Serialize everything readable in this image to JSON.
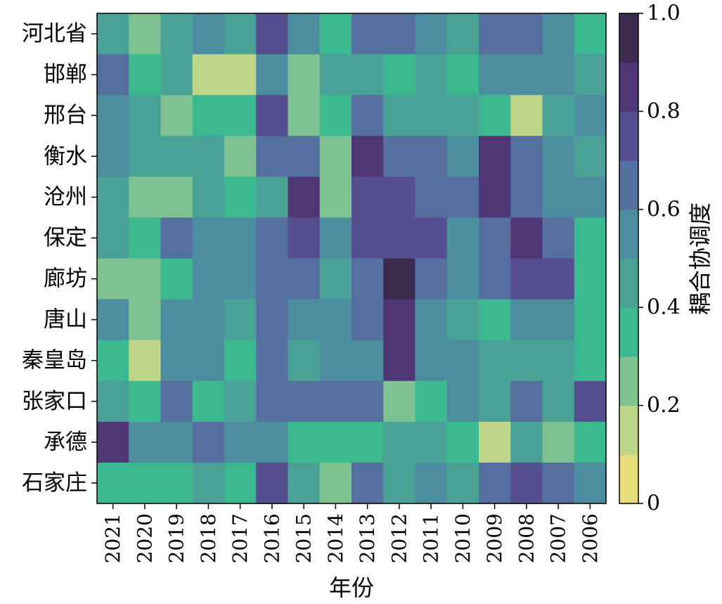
{
  "chart_data": {
    "type": "heatmap",
    "title": "",
    "xlabel": "年份",
    "ylabel": "",
    "x": [
      "2021",
      "2020",
      "2019",
      "2018",
      "2017",
      "2016",
      "2015",
      "2014",
      "2013",
      "2012",
      "2011",
      "2010",
      "2009",
      "2008",
      "2007",
      "2006"
    ],
    "y": [
      "河北省",
      "邯郸",
      "邢台",
      "衡水",
      "沧州",
      "保定",
      "廊坊",
      "唐山",
      "秦皇岛",
      "张家口",
      "承德",
      "石家庄"
    ],
    "values": [
      [
        0.45,
        0.25,
        0.45,
        0.55,
        0.45,
        0.75,
        0.55,
        0.35,
        0.65,
        0.65,
        0.55,
        0.45,
        0.65,
        0.65,
        0.55,
        0.35
      ],
      [
        0.65,
        0.35,
        0.45,
        0.15,
        0.15,
        0.55,
        0.25,
        0.45,
        0.45,
        0.35,
        0.45,
        0.35,
        0.55,
        0.55,
        0.55,
        0.45
      ],
      [
        0.55,
        0.45,
        0.25,
        0.35,
        0.35,
        0.75,
        0.25,
        0.35,
        0.65,
        0.45,
        0.45,
        0.45,
        0.35,
        0.15,
        0.45,
        0.55
      ],
      [
        0.55,
        0.45,
        0.45,
        0.45,
        0.25,
        0.65,
        0.65,
        0.25,
        0.85,
        0.65,
        0.65,
        0.55,
        0.85,
        0.65,
        0.55,
        0.45
      ],
      [
        0.45,
        0.25,
        0.25,
        0.45,
        0.35,
        0.45,
        0.85,
        0.25,
        0.75,
        0.75,
        0.65,
        0.65,
        0.85,
        0.65,
        0.55,
        0.55
      ],
      [
        0.45,
        0.35,
        0.65,
        0.55,
        0.55,
        0.65,
        0.75,
        0.55,
        0.75,
        0.75,
        0.75,
        0.55,
        0.65,
        0.85,
        0.65,
        0.35
      ],
      [
        0.25,
        0.25,
        0.35,
        0.55,
        0.55,
        0.65,
        0.65,
        0.45,
        0.65,
        0.95,
        0.65,
        0.55,
        0.65,
        0.75,
        0.75,
        0.35
      ],
      [
        0.55,
        0.25,
        0.55,
        0.55,
        0.45,
        0.65,
        0.55,
        0.55,
        0.65,
        0.85,
        0.55,
        0.45,
        0.35,
        0.55,
        0.55,
        0.35
      ],
      [
        0.35,
        0.15,
        0.55,
        0.55,
        0.35,
        0.65,
        0.45,
        0.55,
        0.55,
        0.85,
        0.55,
        0.55,
        0.45,
        0.45,
        0.45,
        0.35
      ],
      [
        0.45,
        0.35,
        0.65,
        0.35,
        0.45,
        0.65,
        0.65,
        0.65,
        0.65,
        0.25,
        0.35,
        0.55,
        0.45,
        0.65,
        0.45,
        0.75
      ],
      [
        0.85,
        0.55,
        0.55,
        0.65,
        0.55,
        0.55,
        0.35,
        0.35,
        0.35,
        0.45,
        0.45,
        0.35,
        0.15,
        0.45,
        0.25,
        0.35
      ],
      [
        0.35,
        0.35,
        0.35,
        0.45,
        0.35,
        0.75,
        0.45,
        0.25,
        0.65,
        0.45,
        0.55,
        0.45,
        0.65,
        0.75,
        0.65,
        0.55
      ]
    ],
    "colorbar": {
      "label": "耦合协调度",
      "range": [
        0,
        1.0
      ],
      "ticks": [
        "0",
        "0.2",
        "0.4",
        "0.6",
        "0.8",
        "1.0"
      ],
      "bins": 10,
      "colors": [
        "#e6dd7c",
        "#bed58a",
        "#7fc291",
        "#3db98f",
        "#4aa296",
        "#4d8da0",
        "#55709f",
        "#554f8f",
        "#4e3774",
        "#3b2c4f"
      ]
    }
  }
}
